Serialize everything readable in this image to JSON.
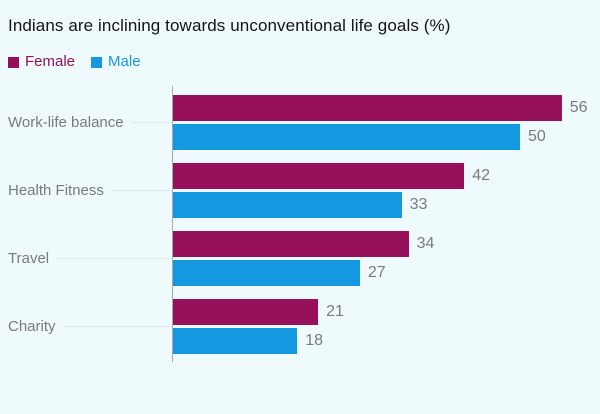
{
  "chart_data": {
    "type": "bar",
    "orientation": "horizontal",
    "title": "Indians are inclining towards unconventional life goals (%)",
    "categories": [
      "Work-life balance",
      "Health Fitness",
      "Travel",
      "Charity"
    ],
    "series": [
      {
        "name": "Female",
        "color": "#96105a",
        "values": [
          56,
          42,
          34,
          21
        ]
      },
      {
        "name": "Male",
        "color": "#1499e0",
        "values": [
          50,
          33,
          27,
          18
        ]
      }
    ],
    "xlim": [
      0,
      61.5
    ],
    "value_labels": [
      [
        56,
        50
      ],
      [
        42,
        33
      ],
      [
        34,
        27
      ],
      [
        21,
        18
      ]
    ],
    "legend_position": "top-left",
    "grid": false,
    "axis": "single-vertical-baseline"
  },
  "colors": {
    "background": "#eefafc",
    "title_text": "#141414",
    "muted_text": "#7b7b7b",
    "axis_line": "#a3abae",
    "leader_line": "#dcebeb"
  }
}
